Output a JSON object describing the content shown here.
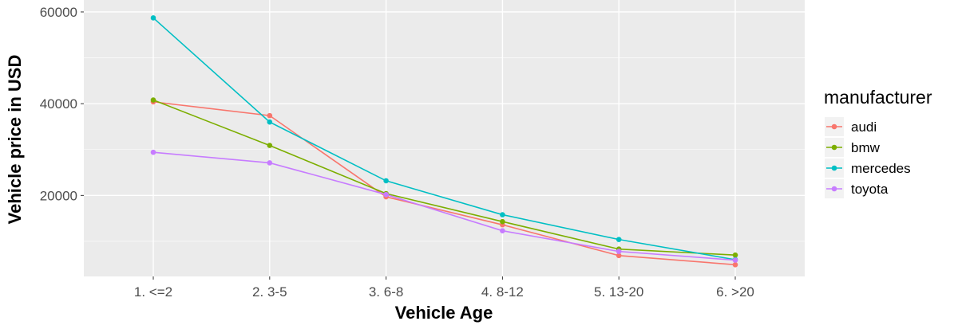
{
  "chart_data": {
    "type": "line",
    "title": "",
    "xlabel": "Vehicle Age",
    "ylabel": "Vehicle price in USD",
    "categories": [
      "1. <=2",
      "2. 3-5",
      "3. 6-8",
      "4. 8-12",
      "5. 13-20",
      "6. >20"
    ],
    "ylim": [
      2350,
      62600
    ],
    "yticks": [
      20000,
      40000,
      60000
    ],
    "ytick_labels": [
      "20000",
      "40000",
      "60000"
    ],
    "grid": true,
    "legend": {
      "title": "manufacturer",
      "position": "right"
    },
    "series": [
      {
        "name": "audi",
        "color": "#F8766D",
        "values": [
          40400,
          37400,
          19700,
          13600,
          6900,
          4900
        ]
      },
      {
        "name": "bmw",
        "color": "#7CAE00",
        "values": [
          40800,
          30900,
          20400,
          14300,
          8300,
          7000
        ]
      },
      {
        "name": "mercedes",
        "color": "#00BFC4",
        "values": [
          58700,
          36000,
          23200,
          15800,
          10400,
          6000
        ]
      },
      {
        "name": "toyota",
        "color": "#C77CFF",
        "values": [
          29400,
          27100,
          20200,
          12300,
          7800,
          5900
        ]
      }
    ]
  }
}
